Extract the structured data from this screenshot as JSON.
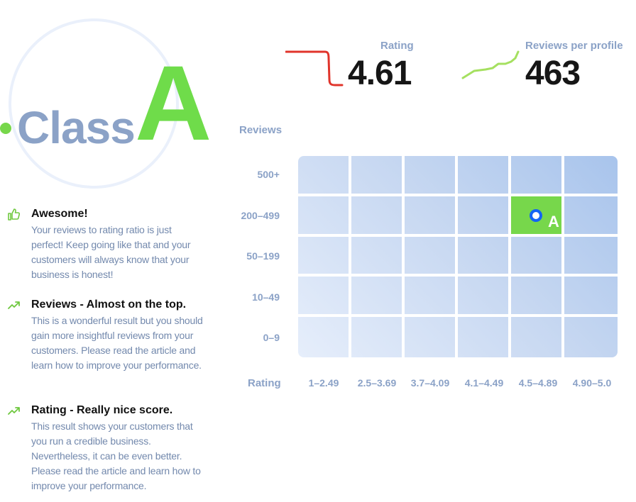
{
  "badge": {
    "word": "Class",
    "letter": "A",
    "accent_color": "#6fdc4a"
  },
  "feedback": [
    {
      "icon": "thumbs-up-icon",
      "title": "Awesome!",
      "text": "Your reviews to rating ratio is just perfect! Keep going like that and your customers will always know that your business is honest!"
    },
    {
      "icon": "trend-up-icon",
      "title": "Reviews - Almost on the top.",
      "text": "This is a wonderful result but you should gain more insightful reviews from your customers. Please read the article and learn how to improve your performance."
    },
    {
      "icon": "trend-up-icon",
      "title": "Rating - Really nice score.",
      "text": "This result shows your customers that you run a credible business. Nevertheless, it can be even better. Please read the article and learn how to improve your performance."
    }
  ],
  "metrics": {
    "rating": {
      "label": "Rating",
      "value": "4.61",
      "sparkline_color": "#e0342b"
    },
    "reviews": {
      "label": "Reviews per profile",
      "value": "463",
      "sparkline_color": "#a5e060"
    }
  },
  "matrix": {
    "y_axis_title": "Reviews",
    "x_axis_title": "Rating",
    "rows": [
      "500+",
      "200–499",
      "50–199",
      "10–49",
      "0–9"
    ],
    "columns": [
      "1–2.49",
      "2.5–3.69",
      "3.7–4.09",
      "4.1–4.49",
      "4.5–4.89",
      "4.90–5.0"
    ],
    "active_cell": {
      "row": "200–499",
      "column": "4.5–4.89",
      "label": "A",
      "color": "#77d74b"
    },
    "marker_color": "#1464f4"
  }
}
